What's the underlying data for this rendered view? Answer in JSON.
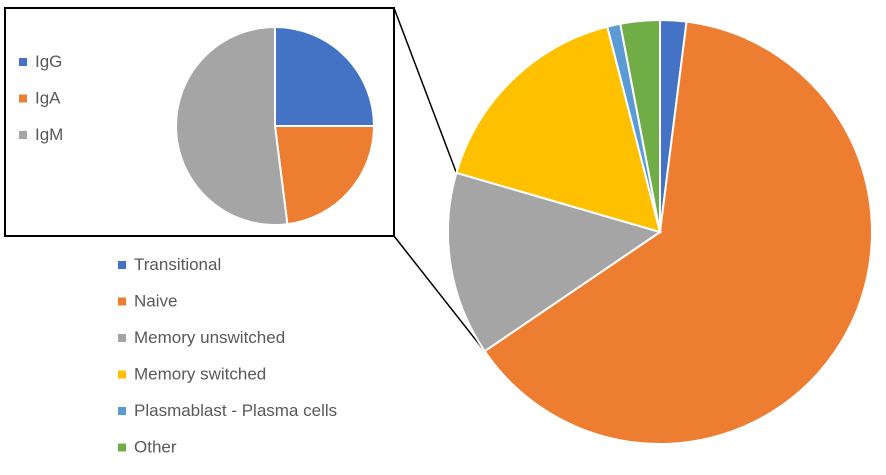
{
  "chart_data": [
    {
      "type": "pie",
      "title": "",
      "categories": [
        "Transitional",
        "Naive",
        "Memory unswitched",
        "Memory switched",
        "Plasmablast - Plasma cells",
        "Other"
      ],
      "values": [
        2.0,
        63.5,
        14.0,
        16.5,
        1.0,
        3.0
      ],
      "colors": [
        "#4472C4",
        "#ED7D31",
        "#A5A5A5",
        "#FFC000",
        "#5B9BD5",
        "#70AD47"
      ],
      "legend_position": "left"
    },
    {
      "type": "pie",
      "title": "",
      "categories": [
        "IgG",
        "IgA",
        "IgM"
      ],
      "values": [
        25,
        23,
        52
      ],
      "colors": [
        "#4472C4",
        "#ED7D31",
        "#A5A5A5"
      ],
      "legend_position": "left",
      "exploded_from": "Memory unswitched"
    }
  ]
}
